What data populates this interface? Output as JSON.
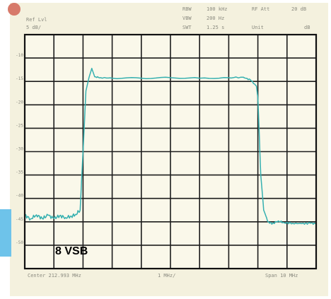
{
  "header": {
    "ref_level": "Ref Lvl",
    "scale": "5 dB/",
    "rbw_label": "RBW",
    "rbw_value": "100 kHz",
    "vbw_label": "VBW",
    "vbw_value": "200 Hz",
    "swt_label": "SWT",
    "swt_value": "1.25 s",
    "rf_att_label": "RF Att",
    "rf_att_value": "20 dB",
    "unit_label": "Unit",
    "unit_value": "dB"
  },
  "footer": {
    "center": "Center 212.993 MHz",
    "span_div": "1 MHz/",
    "span": "Span 10 MHz"
  },
  "annotation": {
    "label": "8 VSB"
  },
  "colors": {
    "trace": "#35b0b0",
    "grid": "#1c1c1c",
    "screen": "#faf8ea",
    "panel": "#f4f1de",
    "accent_strip": "#6ec3ea",
    "marker_dot": "#d77a6a"
  },
  "chart_data": {
    "type": "line",
    "ylabel": "dB",
    "ylim": [
      -50,
      0
    ],
    "ytick_labels": [
      "-10",
      "-15",
      "-20",
      "-25",
      "-30",
      "-35",
      "-40",
      "-45",
      "-50"
    ],
    "xlim": [
      0,
      10
    ],
    "series": [
      {
        "values_xy": [
          [
            0.0,
            -38.6
          ],
          [
            0.2,
            -39.4
          ],
          [
            0.4,
            -38.5
          ],
          [
            0.6,
            -39.3
          ],
          [
            0.8,
            -38.6
          ],
          [
            1.0,
            -39.3
          ],
          [
            1.2,
            -38.7
          ],
          [
            1.4,
            -39.1
          ],
          [
            1.6,
            -38.8
          ],
          [
            1.75,
            -38.4
          ],
          [
            1.9,
            -37.5
          ],
          [
            2.0,
            -25.0
          ],
          [
            2.1,
            -12.0
          ],
          [
            2.2,
            -9.3
          ],
          [
            2.3,
            -7.2
          ],
          [
            2.4,
            -9.0
          ],
          [
            2.6,
            -9.2
          ],
          [
            3.0,
            -9.3
          ],
          [
            4.0,
            -9.3
          ],
          [
            5.0,
            -9.2
          ],
          [
            6.0,
            -9.3
          ],
          [
            7.0,
            -9.2
          ],
          [
            7.5,
            -9.1
          ],
          [
            7.75,
            -9.7
          ],
          [
            7.95,
            -11.0
          ],
          [
            8.0,
            -13.5
          ],
          [
            8.1,
            -30.0
          ],
          [
            8.2,
            -37.5
          ],
          [
            8.35,
            -40.0
          ],
          [
            8.5,
            -40.4
          ],
          [
            8.7,
            -39.8
          ],
          [
            8.9,
            -40.2
          ],
          [
            9.2,
            -40.3
          ],
          [
            9.5,
            -40.4
          ],
          [
            9.8,
            -40.3
          ],
          [
            10.0,
            -40.4
          ]
        ]
      }
    ]
  }
}
